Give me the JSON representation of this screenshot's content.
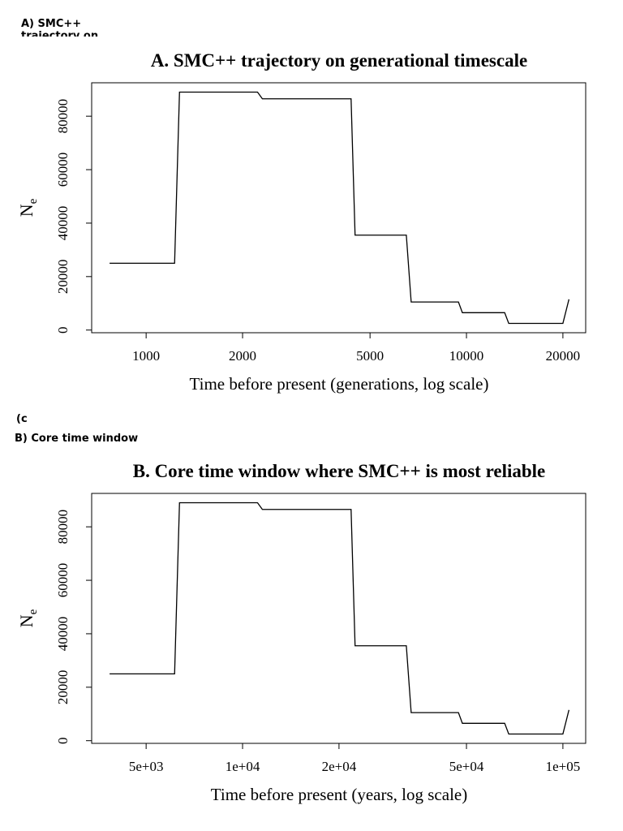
{
  "panel_labels": {
    "a": [
      "A) SMC++",
      "trajectory on"
    ],
    "stray": "(c",
    "b": "B) Core time window"
  },
  "chart_data": [
    {
      "type": "line",
      "title": "A. SMC++ trajectory on generational timescale",
      "x_label": "Time before present (generations, log scale)",
      "y_label": "N",
      "y_label_sub": "e",
      "x": [
        769,
        1227,
        1271,
        2227,
        2306,
        4363,
        4490,
        6490,
        6720,
        9440,
        9710,
        13160,
        13550,
        20000,
        20890
      ],
      "series": [
        {
          "name": "Ne",
          "color": "#000000",
          "values": [
            25000,
            25000,
            89000,
            89000,
            86500,
            86500,
            35500,
            35500,
            10500,
            10500,
            6500,
            6500,
            2500,
            2500,
            11500
          ]
        }
      ],
      "x_log": true,
      "xlim": [
        676,
        23560
      ],
      "xticks": [
        1000,
        2000,
        5000,
        10000,
        20000
      ],
      "ylim": [
        -1000,
        92500
      ],
      "yticks": [
        0,
        20000,
        40000,
        60000,
        80000
      ]
    },
    {
      "type": "line",
      "title": "B. Core time window where SMC++ is most reliable",
      "x_label": "Time before present (years, log scale)",
      "y_label": "N",
      "y_label_sub": "e",
      "x": [
        3845,
        6135,
        6355,
        11135,
        11530,
        21815,
        22450,
        32450,
        33600,
        47200,
        48550,
        65800,
        67750,
        100000,
        104450
      ],
      "series": [
        {
          "name": "Ne",
          "color": "#000000",
          "values": [
            25000,
            25000,
            89000,
            89000,
            86500,
            86500,
            35500,
            35500,
            10500,
            10500,
            6500,
            6500,
            2500,
            2500,
            11500
          ]
        }
      ],
      "x_log": true,
      "xlim": [
        3380,
        117800
      ],
      "xticks": [
        {
          "value": 5000,
          "label": "5e+03"
        },
        {
          "value": 10000,
          "label": "1e+04"
        },
        {
          "value": 20000,
          "label": "2e+04"
        },
        {
          "value": 50000,
          "label": "5e+04"
        },
        {
          "value": 100000,
          "label": "1e+05"
        }
      ],
      "ylim": [
        -1000,
        92500
      ],
      "yticks": [
        0,
        20000,
        40000,
        60000,
        80000
      ]
    }
  ]
}
